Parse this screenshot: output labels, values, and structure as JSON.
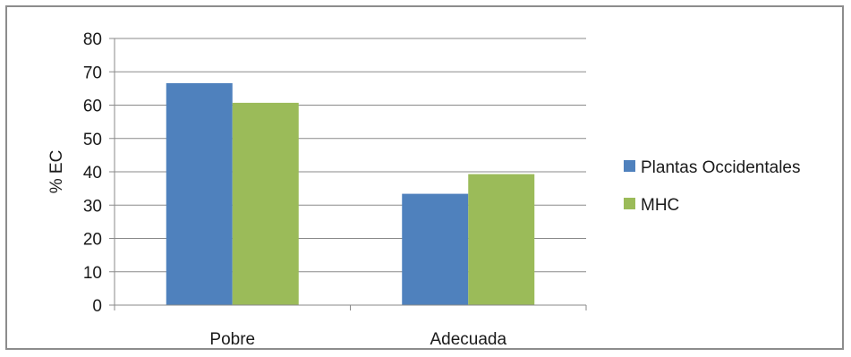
{
  "chart_data": {
    "type": "bar",
    "title": "",
    "xlabel": "",
    "ylabel": "% EC",
    "categories": [
      "Pobre",
      "Adecuada"
    ],
    "series": [
      {
        "name": "Plantas Occidentales",
        "color": "#4f81bd",
        "values": [
          66.6,
          33.4
        ]
      },
      {
        "name": "MHC",
        "color": "#9bbb59",
        "values": [
          60.7,
          39.3
        ]
      }
    ],
    "ylim": [
      0,
      80
    ],
    "yticks": [
      0,
      10,
      20,
      30,
      40,
      50,
      60,
      70,
      80
    ],
    "grid": true,
    "legend": "right"
  }
}
